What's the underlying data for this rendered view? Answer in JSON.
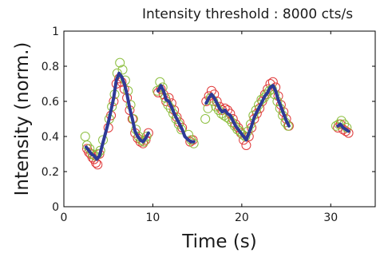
{
  "chart_data": {
    "type": "scatter",
    "title": "Intensity threshold : 8000 cts/s",
    "xlabel": "Time (s)",
    "ylabel": "Intensity (norm.)",
    "xlim": [
      0,
      35
    ],
    "ylim": [
      0,
      1
    ],
    "xticks": [
      "0",
      "10",
      "20",
      "30"
    ],
    "yticks": [
      "0",
      "0.2",
      "0.4",
      "0.6",
      "0.8",
      "1"
    ],
    "grid": false,
    "legend": "none",
    "colors": {
      "series_a": "#e03a3a",
      "series_b": "#8cbf3f",
      "mean": "#2e3a96",
      "axis": "#000000"
    },
    "series": [
      {
        "marker": "open-circle",
        "color": "#e03a3a",
        "x": [
          2.6,
          2.8,
          3.0,
          3.2,
          3.4,
          3.6,
          3.8,
          4.0,
          5.0,
          5.3,
          5.6,
          5.9,
          6.2,
          6.5,
          6.8,
          7.1,
          7.4,
          7.7,
          8.0,
          8.3,
          8.6,
          8.9,
          9.2,
          9.5,
          10.6,
          10.9,
          11.2,
          11.5,
          11.8,
          12.1,
          12.4,
          12.7,
          13.0,
          13.3,
          14.2,
          14.5,
          16.0,
          16.3,
          16.6,
          16.9,
          17.2,
          17.5,
          17.8,
          18.1,
          18.4,
          18.7,
          19.0,
          19.3,
          19.6,
          19.9,
          20.2,
          20.5,
          20.8,
          21.1,
          21.4,
          21.7,
          22.0,
          22.3,
          22.6,
          22.9,
          23.2,
          23.5,
          23.8,
          24.1,
          24.4,
          24.7,
          25.0,
          25.3,
          30.8,
          31.1,
          31.4,
          31.7,
          32.0
        ],
        "y": [
          0.33,
          0.31,
          0.3,
          0.28,
          0.27,
          0.25,
          0.24,
          0.3,
          0.45,
          0.52,
          0.6,
          0.7,
          0.73,
          0.71,
          0.67,
          0.62,
          0.55,
          0.5,
          0.42,
          0.39,
          0.37,
          0.36,
          0.38,
          0.42,
          0.65,
          0.67,
          0.64,
          0.6,
          0.62,
          0.59,
          0.55,
          0.51,
          0.48,
          0.45,
          0.37,
          0.38,
          0.6,
          0.63,
          0.66,
          0.64,
          0.6,
          0.57,
          0.55,
          0.56,
          0.55,
          0.53,
          0.5,
          0.47,
          0.45,
          0.42,
          0.38,
          0.35,
          0.4,
          0.45,
          0.5,
          0.53,
          0.56,
          0.6,
          0.64,
          0.67,
          0.7,
          0.71,
          0.68,
          0.63,
          0.58,
          0.54,
          0.5,
          0.46,
          0.45,
          0.47,
          0.44,
          0.43,
          0.42
        ]
      },
      {
        "marker": "open-circle",
        "color": "#8cbf3f",
        "x": [
          2.4,
          2.6,
          2.9,
          3.2,
          3.5,
          3.8,
          4.1,
          4.4,
          5.1,
          5.4,
          5.7,
          6.0,
          6.3,
          6.6,
          6.9,
          7.2,
          7.5,
          7.8,
          8.1,
          8.4,
          8.7,
          9.0,
          9.3,
          10.5,
          10.8,
          11.1,
          11.4,
          11.7,
          12.0,
          12.3,
          12.6,
          12.9,
          13.2,
          14.0,
          14.3,
          14.6,
          15.9,
          16.2,
          16.5,
          16.8,
          17.1,
          17.4,
          17.7,
          18.0,
          18.3,
          18.6,
          18.9,
          19.2,
          19.5,
          19.8,
          20.1,
          20.4,
          20.7,
          21.0,
          21.3,
          21.6,
          21.9,
          22.2,
          22.5,
          22.8,
          23.1,
          23.4,
          23.7,
          24.0,
          24.3,
          24.6,
          24.9,
          25.2,
          30.6,
          30.9,
          31.2,
          31.5,
          31.8
        ],
        "y": [
          0.4,
          0.35,
          0.33,
          0.3,
          0.29,
          0.3,
          0.32,
          0.38,
          0.5,
          0.57,
          0.64,
          0.76,
          0.82,
          0.78,
          0.72,
          0.66,
          0.58,
          0.5,
          0.44,
          0.4,
          0.38,
          0.37,
          0.4,
          0.66,
          0.71,
          0.68,
          0.62,
          0.58,
          0.56,
          0.53,
          0.5,
          0.47,
          0.44,
          0.41,
          0.38,
          0.36,
          0.5,
          0.56,
          0.62,
          0.6,
          0.57,
          0.55,
          0.53,
          0.52,
          0.51,
          0.5,
          0.48,
          0.46,
          0.44,
          0.43,
          0.41,
          0.4,
          0.43,
          0.47,
          0.52,
          0.55,
          0.58,
          0.61,
          0.62,
          0.64,
          0.66,
          0.67,
          0.64,
          0.6,
          0.56,
          0.52,
          0.48,
          0.46,
          0.46,
          0.47,
          0.49,
          0.47,
          0.45
        ]
      },
      {
        "marker": "line",
        "color": "#2e3a96",
        "x": [
          2.5,
          2.8,
          3.1,
          3.4,
          3.7,
          4.0,
          5.0,
          5.3,
          5.6,
          5.9,
          6.2,
          6.5,
          6.8,
          7.1,
          7.4,
          7.7,
          8.0,
          8.3,
          8.6,
          8.9,
          9.2,
          9.5,
          10.6,
          10.9,
          11.2,
          11.5,
          11.8,
          12.1,
          12.4,
          12.7,
          13.0,
          13.3,
          13.6,
          14.0,
          14.3,
          14.6,
          16.0,
          16.3,
          16.6,
          16.9,
          17.2,
          17.5,
          17.8,
          18.1,
          18.4,
          18.7,
          19.0,
          19.3,
          19.6,
          19.9,
          20.2,
          20.5,
          20.8,
          21.1,
          21.4,
          21.7,
          22.0,
          22.3,
          22.6,
          22.9,
          23.2,
          23.5,
          23.8,
          24.1,
          24.4,
          24.7,
          25.0,
          25.3,
          30.8,
          31.1,
          31.4,
          31.7,
          32.0
        ],
        "y": [
          0.34,
          0.32,
          0.3,
          0.29,
          0.27,
          0.29,
          0.48,
          0.55,
          0.62,
          0.72,
          0.76,
          0.74,
          0.7,
          0.64,
          0.56,
          0.5,
          0.43,
          0.4,
          0.38,
          0.37,
          0.39,
          0.42,
          0.66,
          0.69,
          0.66,
          0.61,
          0.6,
          0.57,
          0.53,
          0.5,
          0.47,
          0.44,
          0.4,
          0.38,
          0.37,
          0.37,
          0.59,
          0.62,
          0.64,
          0.62,
          0.59,
          0.56,
          0.54,
          0.55,
          0.53,
          0.52,
          0.49,
          0.46,
          0.44,
          0.42,
          0.4,
          0.38,
          0.42,
          0.46,
          0.51,
          0.54,
          0.57,
          0.6,
          0.63,
          0.65,
          0.68,
          0.69,
          0.66,
          0.61,
          0.57,
          0.53,
          0.49,
          0.46,
          0.46,
          0.47,
          0.45,
          0.44,
          0.43
        ]
      }
    ]
  }
}
